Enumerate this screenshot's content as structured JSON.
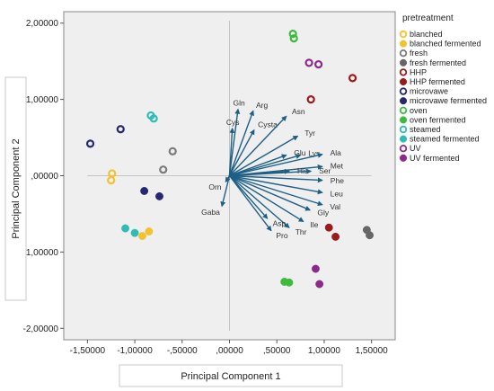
{
  "chart_data": {
    "type": "scatter",
    "subtype": "pca-biplot",
    "xlabel": "Principal Component 1",
    "ylabel": "Principal Component 2",
    "xlim": [
      -1.75,
      1.75
    ],
    "ylim": [
      -2.15,
      2.15
    ],
    "xticks": [
      -1.5,
      -1.0,
      -0.5,
      0.0,
      0.5,
      1.0,
      1.5
    ],
    "yticks": [
      -2.0,
      -1.0,
      0.0,
      1.0,
      2.0
    ],
    "xtick_labels": [
      "-1,50000",
      "-1,00000",
      "-,50000",
      ",00000",
      ",50000",
      "1,00000",
      "1,50000"
    ],
    "ytick_labels": [
      "-2,00000",
      "-1,00000",
      ",00000",
      "1,00000",
      "2,00000"
    ],
    "plot_background": "#efefef",
    "legend": {
      "title": "pretreatment",
      "placement": "right"
    },
    "series": [
      {
        "name": "blanched",
        "color": "#f2c230",
        "filled": false,
        "points": [
          [
            -1.24,
            0.03
          ],
          [
            -1.25,
            -0.06
          ]
        ]
      },
      {
        "name": "blanched fermented",
        "color": "#f2c230",
        "filled": true,
        "points": [
          [
            -0.92,
            -0.79
          ],
          [
            -0.85,
            -0.73
          ]
        ]
      },
      {
        "name": "fresh",
        "color": "#7a7a7a",
        "filled": false,
        "points": [
          [
            -0.6,
            0.32
          ],
          [
            -0.7,
            0.08
          ]
        ]
      },
      {
        "name": "fresh fermented",
        "color": "#666666",
        "filled": true,
        "points": [
          [
            1.45,
            -0.71
          ],
          [
            1.48,
            -0.78
          ]
        ]
      },
      {
        "name": "HHP",
        "color": "#9b1b1b",
        "filled": false,
        "points": [
          [
            0.86,
            1.0
          ],
          [
            1.3,
            1.28
          ]
        ]
      },
      {
        "name": "HHP fermented",
        "color": "#9b1b1b",
        "filled": true,
        "points": [
          [
            1.05,
            -0.68
          ],
          [
            1.12,
            -0.8
          ]
        ]
      },
      {
        "name": "microvawe",
        "color": "#262675",
        "filled": false,
        "points": [
          [
            -1.47,
            0.42
          ],
          [
            -1.15,
            0.61
          ]
        ]
      },
      {
        "name": "microvawe fermented",
        "color": "#262675",
        "filled": true,
        "points": [
          [
            -0.9,
            -0.2
          ],
          [
            -0.74,
            -0.27
          ]
        ]
      },
      {
        "name": "oven",
        "color": "#3cbb3c",
        "filled": false,
        "points": [
          [
            0.67,
            1.86
          ],
          [
            0.68,
            1.8
          ]
        ]
      },
      {
        "name": "oven fermented",
        "color": "#3cbb3c",
        "filled": true,
        "points": [
          [
            0.58,
            -1.39
          ],
          [
            0.63,
            -1.4
          ]
        ]
      },
      {
        "name": "steamed",
        "color": "#2fbcb4",
        "filled": false,
        "points": [
          [
            -0.83,
            0.79
          ],
          [
            -0.8,
            0.75
          ]
        ]
      },
      {
        "name": "steamed fermented",
        "color": "#2fbcb4",
        "filled": true,
        "points": [
          [
            -1.1,
            -0.69
          ],
          [
            -1.0,
            -0.75
          ]
        ]
      },
      {
        "name": "UV",
        "color": "#8b2a8b",
        "filled": false,
        "points": [
          [
            0.84,
            1.48
          ],
          [
            0.94,
            1.46
          ]
        ]
      },
      {
        "name": "UV fermented",
        "color": "#8b2a8b",
        "filled": true,
        "points": [
          [
            0.91,
            -1.22
          ],
          [
            0.95,
            -1.42
          ]
        ]
      }
    ],
    "loadings": [
      {
        "name": "Gln",
        "x": 0.09,
        "y": 0.87
      },
      {
        "name": "Arg",
        "x": 0.25,
        "y": 0.85
      },
      {
        "name": "Cys",
        "x": 0.03,
        "y": 0.62
      },
      {
        "name": "Cysta",
        "x": 0.26,
        "y": 0.6
      },
      {
        "name": "Asn",
        "x": 0.6,
        "y": 0.78
      },
      {
        "name": "Tyr",
        "x": 0.72,
        "y": 0.52
      },
      {
        "name": "Glu",
        "x": 0.6,
        "y": 0.27
      },
      {
        "name": "Lys",
        "x": 0.75,
        "y": 0.27
      },
      {
        "name": "Ala",
        "x": 0.98,
        "y": 0.28
      },
      {
        "name": "Met",
        "x": 0.98,
        "y": 0.12
      },
      {
        "name": "His",
        "x": 0.63,
        "y": 0.06
      },
      {
        "name": "Ser",
        "x": 0.86,
        "y": 0.06
      },
      {
        "name": "Phe",
        "x": 0.98,
        "y": -0.06
      },
      {
        "name": "Leu",
        "x": 0.98,
        "y": -0.22
      },
      {
        "name": "Val",
        "x": 0.98,
        "y": -0.38
      },
      {
        "name": "Ile",
        "x": 0.78,
        "y": -0.6
      },
      {
        "name": "Gly",
        "x": 0.85,
        "y": -0.45
      },
      {
        "name": "Thr",
        "x": 0.63,
        "y": -0.68
      },
      {
        "name": "Asp",
        "x": 0.4,
        "y": -0.56
      },
      {
        "name": "Pro",
        "x": 0.44,
        "y": -0.72
      },
      {
        "name": "Gaba",
        "x": -0.08,
        "y": -0.4
      },
      {
        "name": "Orn",
        "x": -0.04,
        "y": -0.08
      }
    ]
  }
}
